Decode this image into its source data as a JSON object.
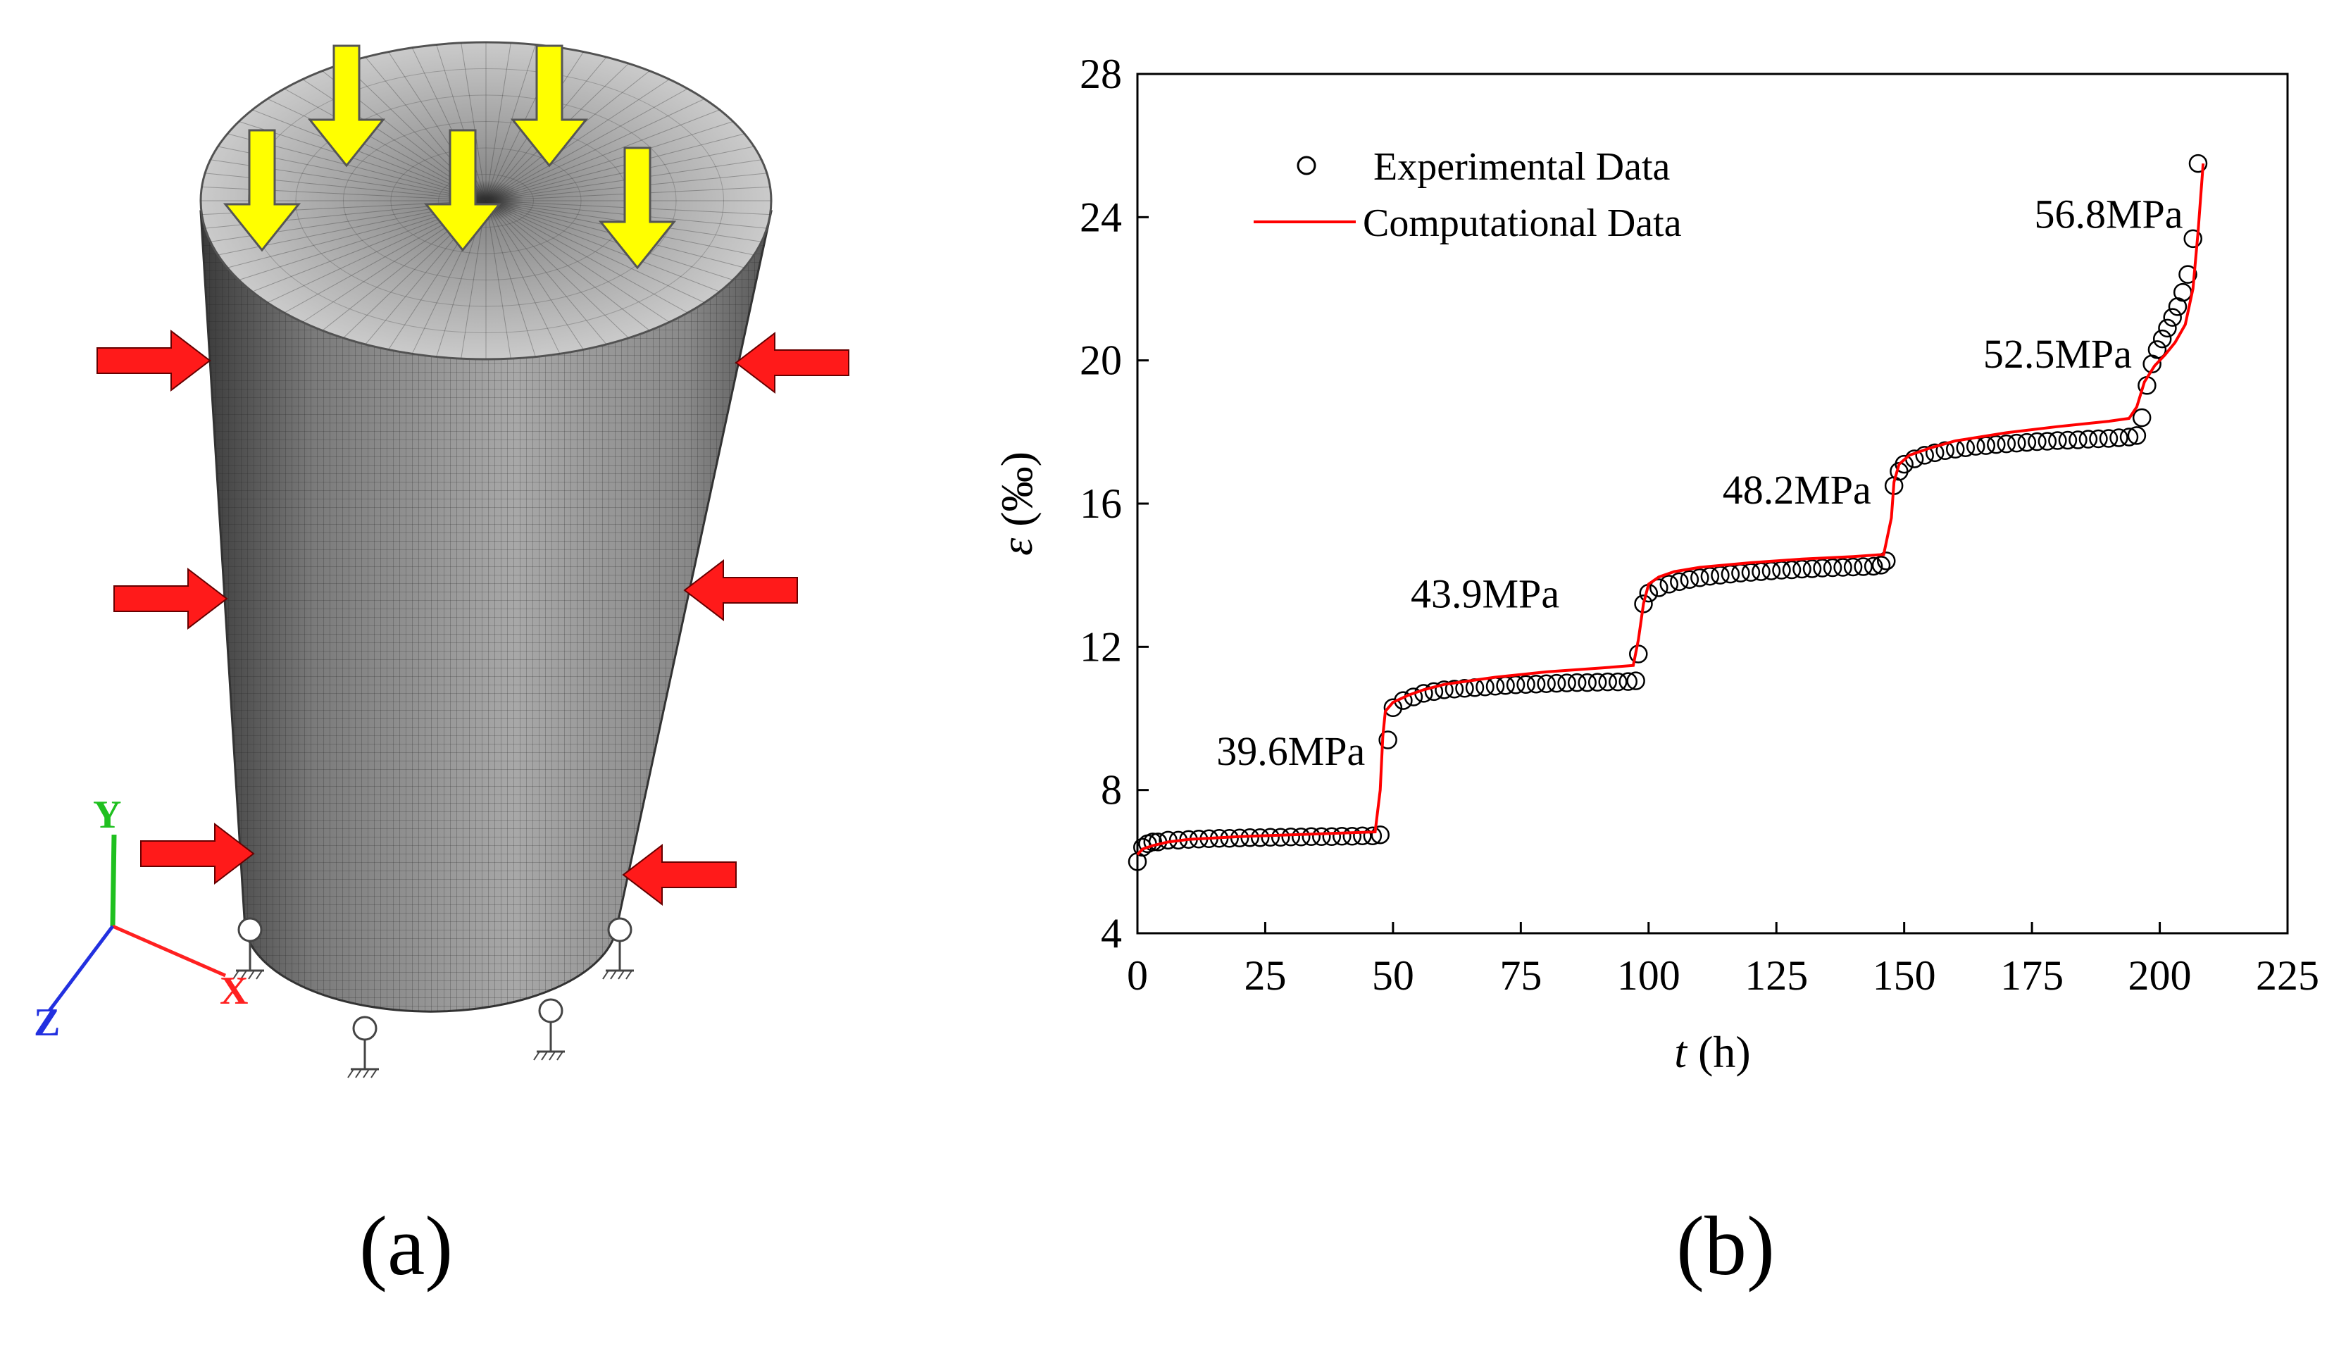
{
  "panel_a": {
    "label": "(a)",
    "axes": {
      "x": "X",
      "y": "Y",
      "z": "Z"
    },
    "colors": {
      "vertical_load": "#ffff00",
      "lateral_load": "#ff1a1a",
      "axis_x": "#ff2020",
      "axis_y": "#1fc01f",
      "axis_z": "#2230e0"
    },
    "icons": [
      "vertical-load-arrow-icon",
      "confining-pressure-arrow-icon",
      "pin-support-icon",
      "coordinate-axes-icon"
    ]
  },
  "panel_b": {
    "label": "(b)"
  },
  "chart_data": {
    "type": "scatter",
    "title": "",
    "xlabel_sym": "t",
    "xlabel_unit": " (h)",
    "ylabel_sym": "ε",
    "ylabel_unit": " (‰)",
    "xlim": [
      0,
      225
    ],
    "ylim": [
      4,
      28
    ],
    "xticks": [
      0,
      25,
      50,
      75,
      100,
      125,
      150,
      175,
      200,
      225
    ],
    "yticks": [
      4,
      8,
      12,
      16,
      20,
      24,
      28
    ],
    "grid": false,
    "legend": {
      "position": "top-left",
      "entries": [
        {
          "name": "Experimental Data",
          "marker": "open-circle",
          "color": "#000000"
        },
        {
          "name": "Computational Data",
          "marker": "line",
          "color": "#ff0000"
        }
      ]
    },
    "annotations": [
      {
        "text": "39.6MPa",
        "x": 30,
        "y": 8.7
      },
      {
        "text": "43.9MPa",
        "x": 68,
        "y": 13.1
      },
      {
        "text": "48.2MPa",
        "x": 129,
        "y": 16.0
      },
      {
        "text": "52.5MPa",
        "x": 180,
        "y": 19.8
      },
      {
        "text": "56.8MPa",
        "x": 190,
        "y": 23.7
      }
    ],
    "series": [
      {
        "name": "Experimental Data",
        "x": [
          0,
          1,
          2,
          3,
          4,
          6,
          8,
          10,
          12,
          14,
          16,
          18,
          20,
          22,
          24,
          26,
          28,
          30,
          32,
          34,
          36,
          38,
          40,
          42,
          44,
          46,
          47.5,
          49,
          50,
          52,
          54,
          56,
          58,
          60,
          62,
          64,
          66,
          68,
          70,
          72,
          74,
          76,
          78,
          80,
          82,
          84,
          86,
          88,
          90,
          92,
          94,
          96,
          97.5,
          98,
          99,
          100,
          102,
          104,
          106,
          108,
          110,
          112,
          114,
          116,
          118,
          120,
          122,
          124,
          126,
          128,
          130,
          132,
          134,
          136,
          138,
          140,
          142,
          144,
          145.5,
          146.5,
          148,
          149,
          150,
          152,
          154,
          156,
          158,
          160,
          162,
          164,
          166,
          168,
          170,
          172,
          174,
          176,
          178,
          180,
          182,
          184,
          186,
          188,
          190,
          192,
          194,
          195.5,
          196.5,
          197.5,
          198.5,
          199.5,
          200.5,
          201.5,
          202.5,
          203.5,
          204.5,
          205.5,
          206.5,
          207.5
        ],
        "y": [
          6.0,
          6.4,
          6.5,
          6.55,
          6.55,
          6.6,
          6.6,
          6.62,
          6.63,
          6.64,
          6.65,
          6.65,
          6.66,
          6.67,
          6.67,
          6.68,
          6.68,
          6.69,
          6.69,
          6.7,
          6.7,
          6.7,
          6.71,
          6.71,
          6.72,
          6.72,
          6.75,
          9.4,
          10.3,
          10.5,
          10.6,
          10.7,
          10.75,
          10.8,
          10.82,
          10.84,
          10.86,
          10.88,
          10.9,
          10.92,
          10.94,
          10.95,
          10.96,
          10.97,
          10.98,
          10.99,
          11.0,
          11.0,
          11.01,
          11.02,
          11.02,
          11.03,
          11.05,
          11.8,
          13.2,
          13.5,
          13.65,
          13.75,
          13.82,
          13.88,
          13.93,
          13.97,
          14.0,
          14.03,
          14.06,
          14.08,
          14.1,
          14.12,
          14.14,
          14.15,
          14.17,
          14.18,
          14.2,
          14.21,
          14.22,
          14.23,
          14.24,
          14.25,
          14.28,
          14.4,
          16.5,
          16.9,
          17.1,
          17.25,
          17.35,
          17.42,
          17.48,
          17.52,
          17.56,
          17.6,
          17.62,
          17.65,
          17.67,
          17.69,
          17.71,
          17.73,
          17.74,
          17.76,
          17.77,
          17.78,
          17.8,
          17.81,
          17.82,
          17.84,
          17.86,
          17.9,
          18.4,
          19.3,
          19.9,
          20.3,
          20.6,
          20.9,
          21.2,
          21.5,
          21.9,
          22.4,
          23.4,
          25.5
        ]
      },
      {
        "name": "Computational Data",
        "x": [
          0,
          1,
          3,
          6,
          10,
          20,
          30,
          40,
          46.5,
          47.5,
          48,
          48.5,
          50,
          53,
          56,
          60,
          70,
          80,
          90,
          97,
          98,
          99,
          100,
          102,
          105,
          110,
          120,
          130,
          140,
          146,
          147.5,
          148,
          149,
          151,
          155,
          160,
          170,
          180,
          190,
          194,
          195.5,
          197,
          199,
          201,
          203,
          205,
          206.5,
          207.5,
          208.5
        ],
        "y": [
          6.2,
          6.35,
          6.45,
          6.55,
          6.62,
          6.7,
          6.75,
          6.8,
          6.83,
          8.0,
          9.5,
          10.2,
          10.45,
          10.65,
          10.8,
          10.95,
          11.15,
          11.3,
          11.4,
          11.48,
          12.2,
          13.2,
          13.75,
          13.95,
          14.1,
          14.22,
          14.35,
          14.45,
          14.52,
          14.58,
          15.6,
          16.6,
          17.1,
          17.35,
          17.55,
          17.75,
          17.98,
          18.15,
          18.3,
          18.38,
          18.7,
          19.4,
          19.85,
          20.15,
          20.5,
          21.0,
          22.0,
          23.6,
          25.5
        ]
      }
    ]
  }
}
